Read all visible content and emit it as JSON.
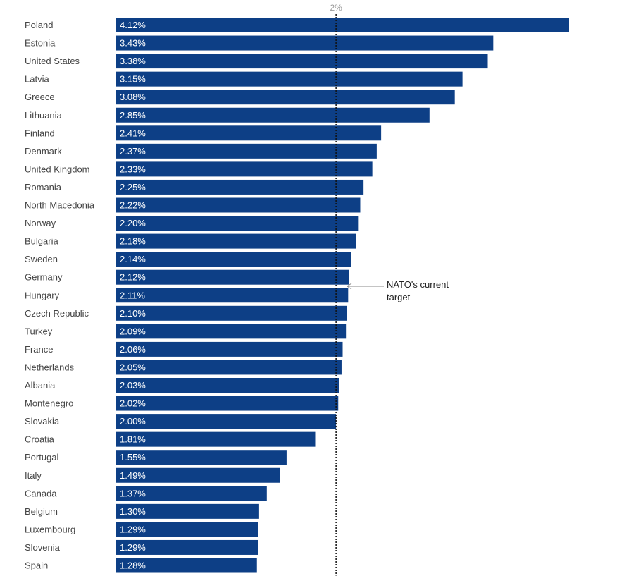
{
  "chart_data": {
    "type": "bar",
    "orientation": "horizontal",
    "categories": [
      "Poland",
      "Estonia",
      "United States",
      "Latvia",
      "Greece",
      "Lithuania",
      "Finland",
      "Denmark",
      "United Kingdom",
      "Romania",
      "North Macedonia",
      "Norway",
      "Bulgaria",
      "Sweden",
      "Germany",
      "Hungary",
      "Czech Republic",
      "Turkey",
      "France",
      "Netherlands",
      "Albania",
      "Montenegro",
      "Slovakia",
      "Croatia",
      "Portugal",
      "Italy",
      "Canada",
      "Belgium",
      "Luxembourg",
      "Slovenia",
      "Spain"
    ],
    "values": [
      4.12,
      3.43,
      3.38,
      3.15,
      3.08,
      2.85,
      2.41,
      2.37,
      2.33,
      2.25,
      2.22,
      2.2,
      2.18,
      2.14,
      2.12,
      2.11,
      2.1,
      2.09,
      2.06,
      2.05,
      2.03,
      2.02,
      2.0,
      1.81,
      1.55,
      1.49,
      1.37,
      1.3,
      1.29,
      1.29,
      1.28
    ],
    "value_labels": [
      "4.12%",
      "3.43%",
      "3.38%",
      "3.15%",
      "3.08%",
      "2.85%",
      "2.41%",
      "2.37%",
      "2.33%",
      "2.25%",
      "2.22%",
      "2.20%",
      "2.18%",
      "2.14%",
      "2.12%",
      "2.11%",
      "2.10%",
      "2.09%",
      "2.06%",
      "2.05%",
      "2.03%",
      "2.02%",
      "2.00%",
      "1.81%",
      "1.55%",
      "1.49%",
      "1.37%",
      "1.30%",
      "1.29%",
      "1.29%",
      "1.28%"
    ],
    "reference_line": {
      "value": 2.0,
      "label": "2%",
      "style": "dotted"
    },
    "annotation": {
      "text_line1": "NATO's current",
      "text_line2": "target",
      "points_to": 2.0
    },
    "xlim": [
      0,
      4.12
    ],
    "grid": false,
    "legend": "none",
    "bar_color": "#0d3f86"
  }
}
